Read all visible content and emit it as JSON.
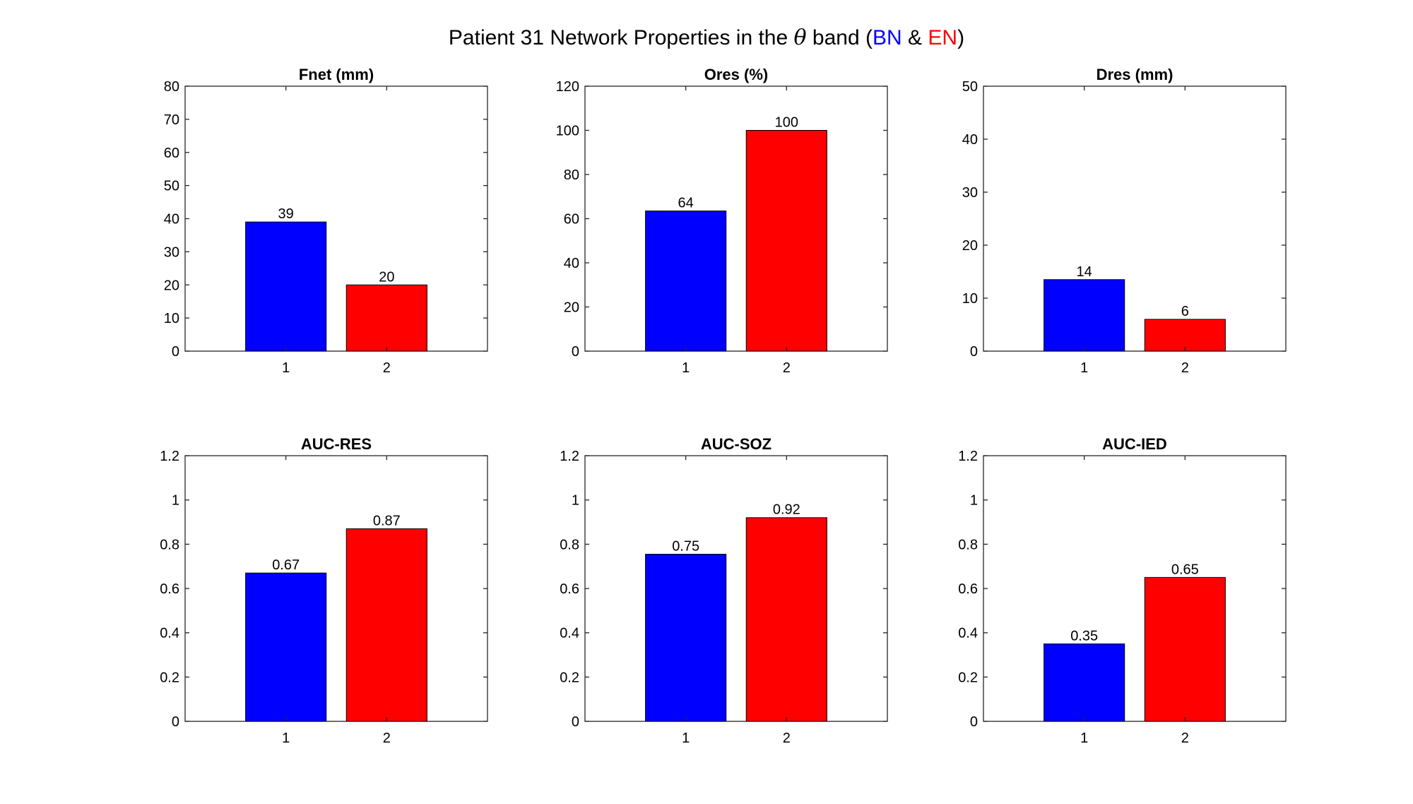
{
  "figure": {
    "title_prefix": "Patient 31 Network Properties in the",
    "title_symbol": "θ",
    "title_band_word": "band (",
    "title_bn": "BN",
    "title_amp": " & ",
    "title_en": "EN",
    "title_close": ")"
  },
  "colors": {
    "bar1": "#0000ff",
    "bar2": "#ff0000",
    "axis": "#262626"
  },
  "chart_data": [
    {
      "type": "bar",
      "title": "Fnet (mm)",
      "categories": [
        "1",
        "2"
      ],
      "values": [
        39,
        20
      ],
      "data_labels": [
        "39",
        "20"
      ],
      "ylim": [
        0,
        80
      ],
      "yticks": [
        "0",
        "10",
        "20",
        "30",
        "40",
        "50",
        "60",
        "70",
        "80"
      ],
      "xlabel": "",
      "ylabel": ""
    },
    {
      "type": "bar",
      "title": "Ores (%)",
      "categories": [
        "1",
        "2"
      ],
      "values": [
        63.5,
        100
      ],
      "data_labels": [
        "64",
        "100"
      ],
      "ylim": [
        0,
        120
      ],
      "yticks": [
        "0",
        "20",
        "40",
        "60",
        "80",
        "100",
        "120"
      ],
      "xlabel": "",
      "ylabel": ""
    },
    {
      "type": "bar",
      "title": "Dres (mm)",
      "categories": [
        "1",
        "2"
      ],
      "values": [
        13.5,
        6
      ],
      "data_labels": [
        "14",
        "6"
      ],
      "ylim": [
        0,
        50
      ],
      "yticks": [
        "0",
        "10",
        "20",
        "30",
        "40",
        "50"
      ],
      "xlabel": "",
      "ylabel": ""
    },
    {
      "type": "bar",
      "title": "AUC-RES",
      "categories": [
        "1",
        "2"
      ],
      "values": [
        0.67,
        0.87
      ],
      "data_labels": [
        "0.67",
        "0.87"
      ],
      "ylim": [
        0,
        1.2
      ],
      "yticks": [
        "0",
        "0.2",
        "0.4",
        "0.6",
        "0.8",
        "1",
        "1.2"
      ],
      "xlabel": "",
      "ylabel": ""
    },
    {
      "type": "bar",
      "title": "AUC-SOZ",
      "categories": [
        "1",
        "2"
      ],
      "values": [
        0.755,
        0.92
      ],
      "data_labels": [
        "0.75",
        "0.92"
      ],
      "ylim": [
        0,
        1.2
      ],
      "yticks": [
        "0",
        "0.2",
        "0.4",
        "0.6",
        "0.8",
        "1",
        "1.2"
      ],
      "xlabel": "",
      "ylabel": ""
    },
    {
      "type": "bar",
      "title": "AUC-IED",
      "categories": [
        "1",
        "2"
      ],
      "values": [
        0.35,
        0.65
      ],
      "data_labels": [
        "0.35",
        "0.65"
      ],
      "ylim": [
        0,
        1.2
      ],
      "yticks": [
        "0",
        "0.2",
        "0.4",
        "0.6",
        "0.8",
        "1",
        "1.2"
      ],
      "xlabel": "",
      "ylabel": ""
    }
  ]
}
